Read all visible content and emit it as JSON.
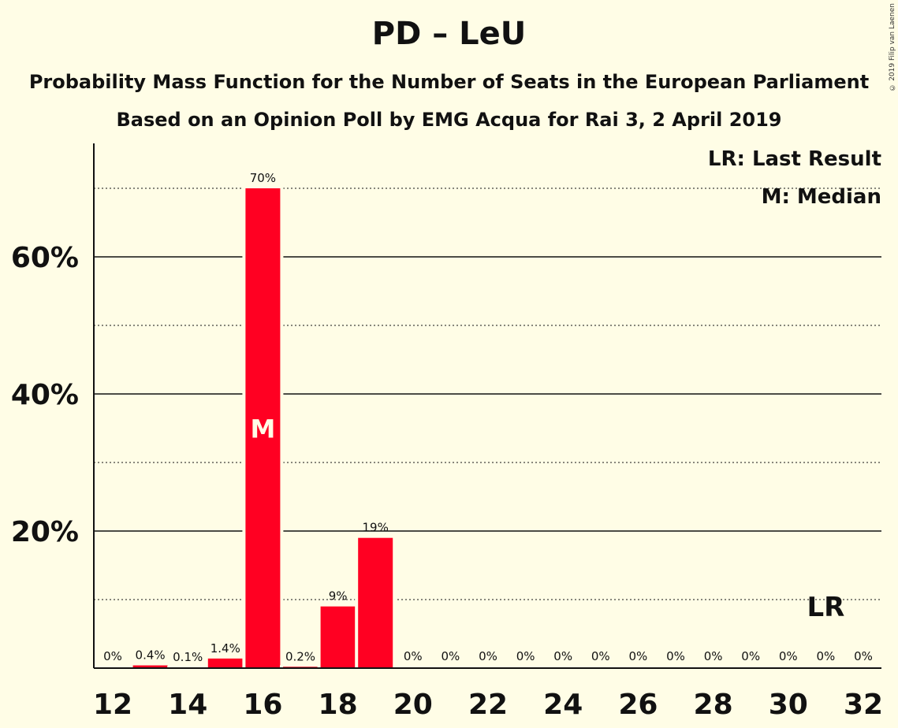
{
  "title": "PD – LeU",
  "subtitle1": "Probability Mass Function for the Number of Seats in the European Parliament",
  "subtitle2": "Based on an Opinion Poll by EMG Acqua for Rai 3, 2 April 2019",
  "copyright": "© 2019 Filip van Laenen",
  "legend": {
    "lr": "LR: Last Result",
    "m": "M: Median"
  },
  "colors": {
    "bar": "#ff0022",
    "background": "#fffde6",
    "text": "#111111"
  },
  "chart_data": {
    "type": "bar",
    "x": [
      12,
      13,
      14,
      15,
      16,
      17,
      18,
      19,
      20,
      21,
      22,
      23,
      24,
      25,
      26,
      27,
      28,
      29,
      30,
      31,
      32
    ],
    "values": [
      0,
      0.4,
      0.1,
      1.4,
      70,
      0.2,
      9,
      19,
      0,
      0,
      0,
      0,
      0,
      0,
      0,
      0,
      0,
      0,
      0,
      0,
      0
    ],
    "labels": [
      "0%",
      "0.4%",
      "0.1%",
      "1.4%",
      "70%",
      "0.2%",
      "9%",
      "19%",
      "0%",
      "0%",
      "0%",
      "0%",
      "0%",
      "0%",
      "0%",
      "0%",
      "0%",
      "0%",
      "0%",
      "0%",
      "0%"
    ],
    "xticks": [
      12,
      14,
      16,
      18,
      20,
      22,
      24,
      26,
      28,
      30,
      32
    ],
    "yticks": [
      20,
      40,
      60
    ],
    "ytick_labels": [
      "20%",
      "40%",
      "60%"
    ],
    "ylim": [
      0,
      76
    ],
    "median": 16,
    "median_label": "M",
    "last_result": 31,
    "last_result_label": "LR",
    "grid": true,
    "legend_position": "top-right"
  }
}
